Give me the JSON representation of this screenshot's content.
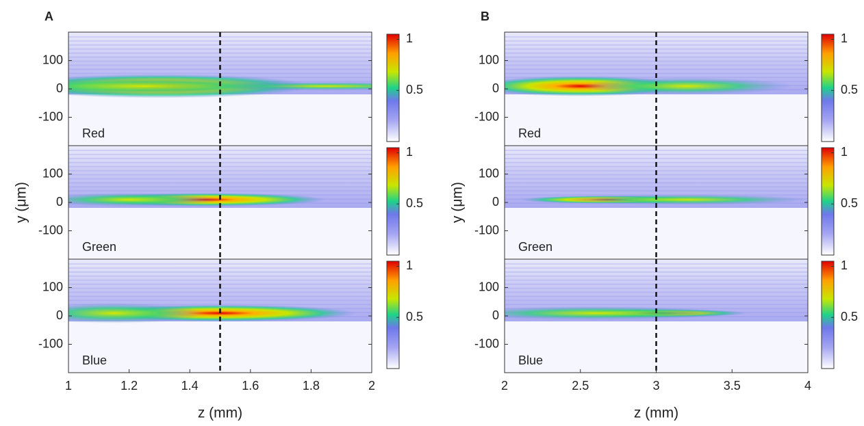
{
  "chart_data": [
    {
      "type": "heatmap",
      "label": "A",
      "xlabel": "z (mm)",
      "ylabel": "y (μm)",
      "xlim": [
        1,
        2
      ],
      "xticks": [
        1,
        1.2,
        1.4,
        1.6,
        1.8,
        2
      ],
      "ylim": [
        -200,
        200
      ],
      "yticks": [
        -100,
        0,
        100
      ],
      "reference_line": 1.5,
      "panels": [
        {
          "label": "Red"
        },
        {
          "label": "Green"
        },
        {
          "label": "Blue"
        }
      ],
      "colorbar": {
        "clim": [
          0,
          1.05
        ],
        "ticks": [
          0.5,
          1
        ]
      }
    },
    {
      "type": "heatmap",
      "label": "B",
      "xlabel": "z (mm)",
      "ylabel": "y (μm)",
      "xlim": [
        2,
        4
      ],
      "xticks": [
        2,
        2.5,
        3,
        3.5,
        4
      ],
      "ylim": [
        -200,
        200
      ],
      "yticks": [
        -100,
        0,
        100
      ],
      "reference_line": 3,
      "panels": [
        {
          "label": "Red"
        },
        {
          "label": "Green"
        },
        {
          "label": "Blue"
        }
      ],
      "colorbar": {
        "clim": [
          0,
          1.05
        ],
        "ticks": [
          0.5,
          1
        ]
      }
    }
  ]
}
